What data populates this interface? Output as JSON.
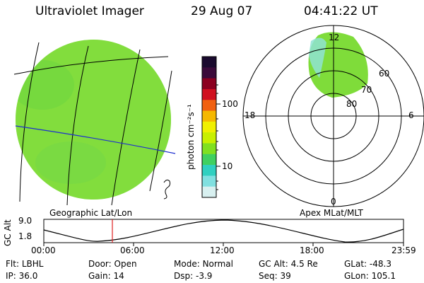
{
  "header": {
    "title": "Ultraviolet Imager",
    "date": "29 Aug 07",
    "time": "04:41:22 UT"
  },
  "colorbar": {
    "unit_label": "photon cm⁻²s⁻¹",
    "ticks": [
      "100",
      "10"
    ],
    "colors": [
      "#1a0a2e",
      "#3b0a3a",
      "#8b0020",
      "#d01020",
      "#f06010",
      "#f5b800",
      "#f0f000",
      "#c8f000",
      "#80e020",
      "#40d060",
      "#30d0c0",
      "#80e0e0",
      "#d8f0f0"
    ]
  },
  "left_map": {
    "caption": "Geographic Lat/Lon",
    "fill_color": "#7fdc3a",
    "low_color": "#9fe8e0"
  },
  "polar_plot": {
    "caption": "Apex MLat/MLT",
    "mlt_labels": {
      "top": "12",
      "left": "18",
      "right": "6",
      "bottom": "0"
    },
    "lat_labels": [
      "60",
      "70",
      "80"
    ]
  },
  "timeline": {
    "axis_label": "GC Alt",
    "y_ticks": [
      "9.0",
      "1.8"
    ],
    "x_ticks": [
      "00:00",
      "06:00",
      "12:00",
      "18:00",
      "23:59"
    ],
    "marker_color": "#e02020"
  },
  "status": {
    "row1": [
      {
        "key": "Flt:",
        "value": "LBHL"
      },
      {
        "key": "Door:",
        "value": "Open"
      },
      {
        "key": "Mode:",
        "value": "Normal"
      },
      {
        "key": "GC Alt:",
        "value": "4.5 Re"
      },
      {
        "key": "GLat:",
        "value": "-48.3"
      }
    ],
    "row2": [
      {
        "key": "IP:",
        "value": "36.0"
      },
      {
        "key": "Gain:",
        "value": "14"
      },
      {
        "key": "Dsp:",
        "value": "-3.9"
      },
      {
        "key": "Seq:",
        "value": "39"
      },
      {
        "key": "GLon:",
        "value": "105.1"
      }
    ]
  }
}
